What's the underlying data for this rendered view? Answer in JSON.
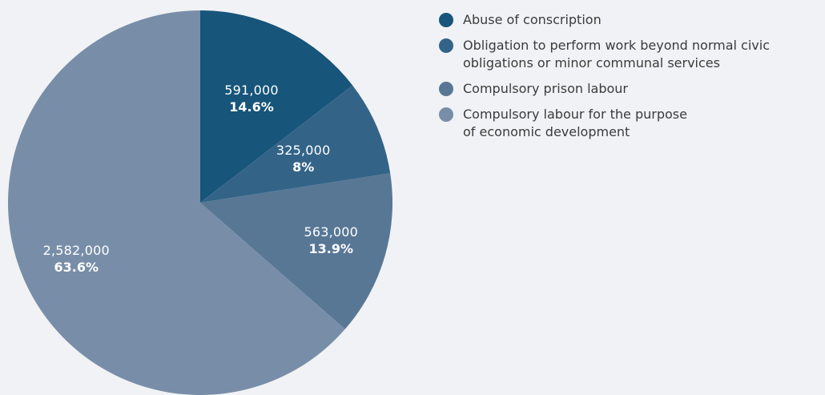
{
  "chart_data": {
    "type": "pie",
    "slices": [
      {
        "label": "Abuse of conscription",
        "value": 591000,
        "value_label": "591,000",
        "percent_label": "14.6%",
        "color": "#17557a"
      },
      {
        "label": "Obligation to perform work beyond normal civic\nobligations or minor communal services",
        "value": 325000,
        "value_label": "325,000",
        "percent_label": "8%",
        "color": "#336488"
      },
      {
        "label": "Compulsory prison labour",
        "value": 563000,
        "value_label": "563,000",
        "percent_label": "13.9%",
        "color": "#587795"
      },
      {
        "label": "Compulsory labour for the purpose\nof economic development",
        "value": 2582000,
        "value_label": "2,582,000",
        "percent_label": "63.6%",
        "color": "#788ea8"
      }
    ],
    "start_angle": "12 o'clock",
    "direction": "clockwise",
    "legend_position": "right"
  }
}
